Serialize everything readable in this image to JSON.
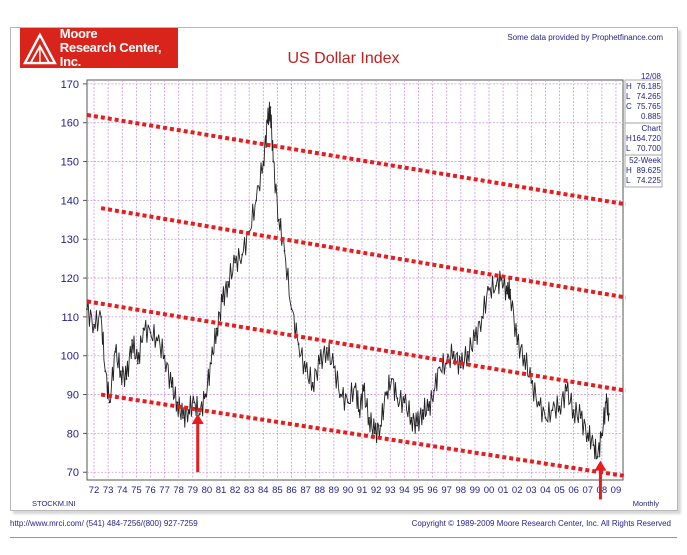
{
  "header": {
    "logo_line1": "Moore",
    "logo_line2": "Research Center, Inc.",
    "credit": "Some data provided by Prophetfinance.com"
  },
  "footer": {
    "url": "http://www.mrci.com/    (541) 484-7256/(800) 927-7259",
    "copyright": "Copyright © 1989-2009 Moore Research Center, Inc. All Rights Reserved"
  },
  "bottom_left_label": "STOCKM.INI",
  "bottom_right_label": "Monthly",
  "side_panel": {
    "date": "12/08",
    "lines": [
      {
        "k": "H",
        "v": "76.185"
      },
      {
        "k": "L",
        "v": "74.265"
      },
      {
        "k": "C",
        "v": "75.765"
      },
      {
        "k": "",
        "v": "0.885"
      }
    ],
    "chart_header": "Chart",
    "chart_lines": [
      {
        "k": "H",
        "v": "164.720"
      },
      {
        "k": "L",
        "v": "70.700"
      }
    ],
    "week_header": "52-Week",
    "week_lines": [
      {
        "k": "H",
        "v": "89.625"
      },
      {
        "k": "L",
        "v": "74.225"
      }
    ]
  },
  "colors": {
    "grid": "#c89ae0",
    "axis_text": "#23238c",
    "price": "#222222",
    "trend": "#e81c1c",
    "arrow": "#e81c1c"
  },
  "chart_data": {
    "type": "line",
    "title": "US Dollar Index",
    "xlabel": "",
    "ylabel": "",
    "ylim": [
      68,
      171
    ],
    "xlim": [
      1972,
      2010
    ],
    "y_ticks": [
      70,
      80,
      90,
      100,
      110,
      120,
      130,
      140,
      150,
      160,
      170
    ],
    "x_tick_labels": [
      "72",
      "73",
      "74",
      "75",
      "76",
      "77",
      "78",
      "79",
      "80",
      "81",
      "82",
      "83",
      "84",
      "85",
      "86",
      "87",
      "88",
      "89",
      "90",
      "91",
      "92",
      "93",
      "94",
      "95",
      "96",
      "97",
      "98",
      "99",
      "00",
      "01",
      "02",
      "03",
      "04",
      "05",
      "06",
      "07",
      "08",
      "09"
    ],
    "grid": true,
    "series": [
      {
        "x": [
          1972.0,
          1972.5,
          1973.0,
          1973.3,
          1973.6,
          1974.0,
          1974.4,
          1974.8,
          1975.2,
          1975.6,
          1976.0,
          1976.5,
          1977.0,
          1977.5,
          1978.0,
          1978.4,
          1978.8,
          1979.2,
          1979.6,
          1980.0,
          1980.4,
          1980.8,
          1981.2,
          1981.6,
          1982.0,
          1982.5,
          1983.0,
          1983.5,
          1984.0,
          1984.5,
          1984.8,
          1985.0,
          1985.2,
          1985.6,
          1986.0,
          1986.5,
          1987.0,
          1987.5,
          1988.0,
          1988.5,
          1989.0,
          1989.5,
          1990.0,
          1990.5,
          1991.0,
          1991.3,
          1991.6,
          1992.0,
          1992.4,
          1992.8,
          1993.2,
          1993.6,
          1994.0,
          1994.5,
          1995.0,
          1995.4,
          1995.8,
          1996.2,
          1996.6,
          1997.0,
          1997.5,
          1998.0,
          1998.5,
          1999.0,
          1999.5,
          2000.0,
          2000.5,
          2001.0,
          2001.4,
          2001.8,
          2002.0,
          2002.5,
          2003.0,
          2003.5,
          2004.0,
          2004.5,
          2005.0,
          2005.5,
          2006.0,
          2006.5,
          2007.0,
          2007.5,
          2007.9,
          2008.2,
          2008.5,
          2008.8,
          2009.0
        ],
        "y": [
          112,
          108,
          110,
          96,
          88,
          101,
          96,
          94,
          104,
          98,
          107,
          106,
          104,
          100,
          92,
          88,
          84,
          86,
          88,
          85,
          90,
          98,
          107,
          114,
          119,
          124,
          126,
          132,
          140,
          150,
          160,
          164,
          150,
          135,
          127,
          112,
          103,
          96,
          93,
          98,
          102,
          97,
          90,
          88,
          92,
          86,
          91,
          84,
          80,
          82,
          90,
          94,
          89,
          88,
          84,
          82,
          86,
          86,
          91,
          97,
          98,
          101,
          97,
          101,
          104,
          110,
          117,
          118,
          120,
          116,
          117,
          103,
          100,
          93,
          88,
          84,
          86,
          87,
          91,
          86,
          84,
          80,
          77,
          74,
          80,
          88,
          85
        ]
      }
    ],
    "trend_lines": [
      {
        "x1": 1972.0,
        "y1": 162,
        "x2": 2010.2,
        "y2": 139
      },
      {
        "x1": 1973.0,
        "y1": 138,
        "x2": 2010.2,
        "y2": 115
      },
      {
        "x1": 1972.0,
        "y1": 114,
        "x2": 2010.2,
        "y2": 91
      },
      {
        "x1": 1973.0,
        "y1": 90,
        "x2": 2010.2,
        "y2": 69
      }
    ],
    "arrows": [
      {
        "x": 1979.85,
        "y_tip": 85,
        "y_tail": 70
      },
      {
        "x": 2008.4,
        "y_tip": 73,
        "y_tail": 63
      }
    ]
  }
}
